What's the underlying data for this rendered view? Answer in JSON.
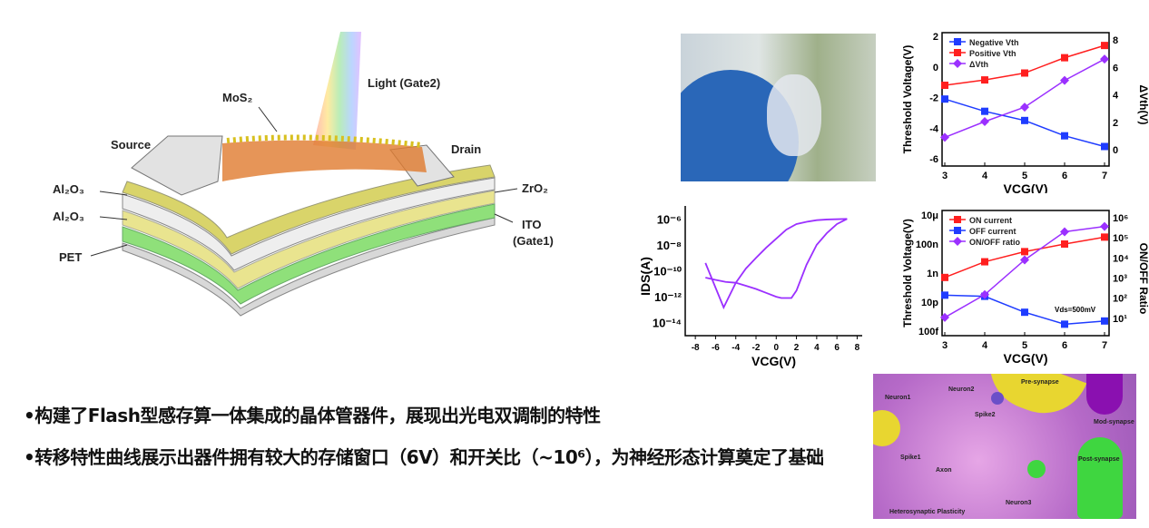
{
  "device": {
    "labels": {
      "mos2": "MoS₂",
      "light": "Light (Gate2)",
      "source": "Source",
      "drain": "Drain",
      "al2o3_top": "Al₂O₃",
      "al2o3_bottom": "Al₂O₃",
      "pet": "PET",
      "zro2": "ZrO₂",
      "ito": "ITO",
      "ito_sub": "(Gate1)"
    }
  },
  "neuron_figure": {
    "labels": {
      "neuron1": "Neuron1",
      "neuron2": "Neuron2",
      "neuron3": "Neuron3",
      "spike1": "Spike1",
      "spike2": "Spike2",
      "axon": "Axon",
      "pre": "Pre-synapse",
      "post": "Post-synapse",
      "mod": "Mod-synapse",
      "hetero": "Heterosynaptic Plasticity"
    }
  },
  "bullets": [
    "•构建了Flash型感存算一体集成的晶体管器件，展现出光电双调制的特性",
    "•转移特性曲线展示出器件拥有较大的存储窗口（6V）和开关比（~10⁶），为神经形态计算奠定了基础"
  ],
  "chart_data": [
    {
      "type": "line",
      "xlabel": "VCG(V)",
      "ylabel": "Threshold Voltage(V)",
      "y2label": "ΔVth(V)",
      "x": [
        3,
        4,
        5,
        6,
        7
      ],
      "xlim": [
        3,
        7
      ],
      "ylim": [
        -6,
        2
      ],
      "y2lim": [
        0,
        8
      ],
      "xticks": [
        "3",
        "4",
        "5",
        "6",
        "7"
      ],
      "yticks": [
        "-6",
        "-4",
        "-2",
        "0",
        "2"
      ],
      "y2ticks": [
        "0",
        "2",
        "4",
        "6",
        "8"
      ],
      "legend_position": "top-left",
      "series": [
        {
          "name": "Negative Vth",
          "axis": "left",
          "color": "#1f3cff",
          "marker": "square",
          "values": [
            -2.1,
            -2.9,
            -3.5,
            -4.5,
            -5.2
          ]
        },
        {
          "name": "Positive Vth",
          "axis": "left",
          "color": "#ff1f1f",
          "marker": "square",
          "values": [
            -1.2,
            -0.85,
            -0.4,
            0.6,
            1.4
          ]
        },
        {
          "name": "ΔVth",
          "axis": "right",
          "color": "#9b30ff",
          "marker": "diamond",
          "values": [
            0.9,
            2.05,
            3.1,
            5.05,
            6.6
          ]
        }
      ]
    },
    {
      "type": "line",
      "xlabel": "VCG(V)",
      "ylabel": "Threshold Voltage(V)",
      "y2label": "ON/OFF Ratio",
      "annotation": "Vds=500mV",
      "x": [
        3,
        4,
        5,
        6,
        7
      ],
      "xlim": [
        3,
        7
      ],
      "ylim": [
        1e-13,
        1e-05
      ],
      "y2lim": [
        3,
        1000000.0
      ],
      "yscale": "log",
      "y2scale": "log",
      "xticks": [
        "3",
        "4",
        "5",
        "6",
        "7"
      ],
      "yticks": [
        "100f",
        "10p",
        "1n",
        "100n",
        "10μ"
      ],
      "y2ticks": [
        "10¹",
        "10²",
        "10³",
        "10⁴",
        "10⁵",
        "10⁶"
      ],
      "legend_position": "top-left",
      "series": [
        {
          "name": "ON   current",
          "axis": "left",
          "color": "#ff1f1f",
          "marker": "square",
          "values": [
            5e-10,
            6e-09,
            3e-08,
            1e-07,
            3e-07
          ]
        },
        {
          "name": "OFF current",
          "axis": "left",
          "color": "#1f3cff",
          "marker": "square",
          "values": [
            3e-11,
            2.5e-11,
            2e-12,
            3e-13,
            5e-13
          ]
        },
        {
          "name": "ON/OFF ratio",
          "axis": "right",
          "color": "#9b30ff",
          "marker": "diamond",
          "values": [
            11,
            150,
            8000,
            200000,
            370000
          ]
        }
      ]
    },
    {
      "type": "line",
      "xlabel": "VCG(V)",
      "ylabel": "IDS(A)",
      "yscale": "log",
      "xlim": [
        -9,
        8.5
      ],
      "ylim": [
        1e-15,
        1e-05
      ],
      "xticks": [
        "-8",
        "-6",
        "-4",
        "-2",
        "0",
        "2",
        "4",
        "6",
        "8"
      ],
      "yticks": [
        "10⁻¹⁴",
        "10⁻¹²",
        "10⁻¹⁰",
        "10⁻⁸",
        "10⁻⁶"
      ],
      "series": [
        {
          "color": "#9b30ff",
          "points": [
            [
              -7,
              4e-10
            ],
            [
              -6,
              5e-12
            ],
            [
              -5.2,
              1.5e-13
            ],
            [
              -4,
              1.2e-11
            ],
            [
              -3,
              1.5e-10
            ],
            [
              -2,
              1e-09
            ],
            [
              -1,
              6e-09
            ],
            [
              0,
              3e-08
            ],
            [
              1,
              1.5e-07
            ],
            [
              2,
              4e-07
            ],
            [
              3,
              6e-07
            ],
            [
              4,
              8e-07
            ],
            [
              5,
              9e-07
            ],
            [
              7,
              1e-06
            ],
            [
              6,
              4e-07
            ],
            [
              5,
              8e-08
            ],
            [
              4,
              1e-08
            ],
            [
              3,
              3e-10
            ],
            [
              2,
              3e-12
            ],
            [
              1.5,
              8e-13
            ],
            [
              0.5,
              8e-13
            ],
            [
              0,
              1e-12
            ],
            [
              -1,
              2e-12
            ],
            [
              -2,
              4e-12
            ],
            [
              -3,
              7e-12
            ],
            [
              -4,
              1.2e-11
            ],
            [
              -5,
              1.4e-11
            ],
            [
              -6,
              2e-11
            ],
            [
              -7,
              3e-11
            ]
          ]
        }
      ]
    }
  ]
}
